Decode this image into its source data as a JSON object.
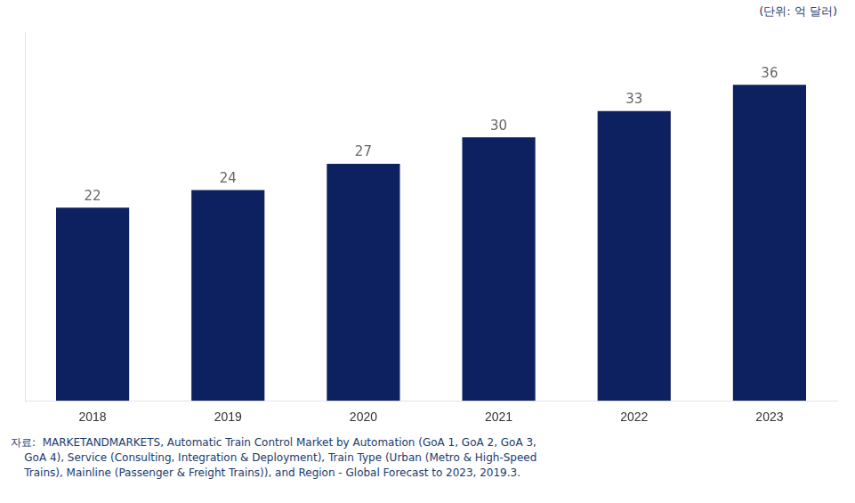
{
  "chart_data": {
    "type": "bar",
    "subtitle": "(단위: 억 달러)",
    "categories": [
      "2018",
      "2019",
      "2020",
      "2021",
      "2022",
      "2023"
    ],
    "values": [
      22,
      24,
      27,
      30,
      33,
      36
    ],
    "color": "#0d2060",
    "ylim": [
      0,
      42
    ],
    "grid": false,
    "data_labels": true,
    "tick_labels": "x",
    "annotations": [
      "자료:  MARKETANDMARKETS, Automatic Train Control Market by Automation (GoA 1, GoA 2, GoA 3,",
      "    GoA 4), Service (Consulting, Integration & Deployment), Train Type (Urban (Metro & High-Speed",
      "    Trains), Mainline (Passenger & Freight Trains)), and Region - Global Forecast to 2023, 2019.3."
    ]
  }
}
